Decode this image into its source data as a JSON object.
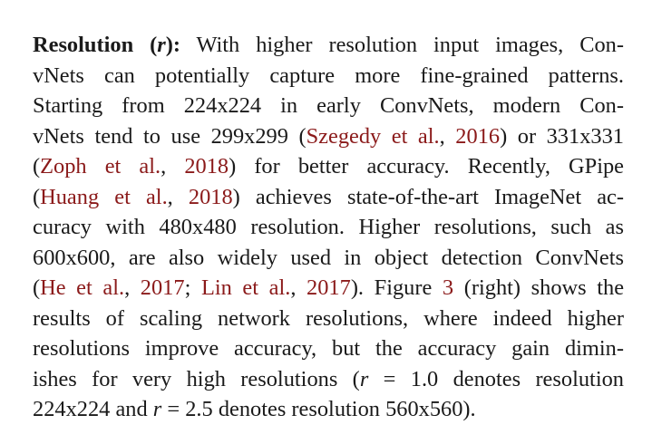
{
  "paragraph": {
    "heading": "Resolution (",
    "heading_var": "r",
    "heading_end": "):",
    "lines": [
      {
        "parts": [
          " With higher resolution input images, Con-"
        ]
      },
      {
        "parts": [
          "vNets can potentially capture more fine-grained patterns."
        ]
      },
      {
        "parts": [
          "Starting from 224x224 in early ConvNets, modern Con-"
        ]
      },
      {
        "parts": [
          "vNets tend to use 299x299 (",
          "Szegedy et al.",
          ", ",
          "2016",
          ") or 331x331"
        ]
      },
      {
        "parts": [
          "(",
          "Zoph et al.",
          ", ",
          "2018",
          ") for better accuracy.  Recently, GPipe"
        ]
      },
      {
        "parts": [
          "(",
          "Huang et al.",
          ", ",
          "2018",
          ") achieves state-of-the-art ImageNet ac-"
        ]
      },
      {
        "parts": [
          "curacy with 480x480 resolution. Higher resolutions, such as"
        ]
      },
      {
        "parts": [
          "600x600, are also widely used in object detection ConvNets"
        ]
      },
      {
        "parts": [
          "(",
          "He et al.",
          ", ",
          "2017",
          "; ",
          "Lin et al.",
          ", ",
          "2017",
          "). Figure ",
          "3",
          " (right) shows the"
        ]
      },
      {
        "parts": [
          "results of scaling network resolutions, where indeed higher"
        ]
      },
      {
        "parts": [
          "resolutions improve accuracy, but the accuracy gain dimin-"
        ]
      },
      {
        "parts": [
          "ishes for very high resolutions (",
          "r",
          " = 1.0 denotes resolution"
        ]
      },
      {
        "parts": [
          "224x224 and ",
          "r",
          " = 2.5 denotes resolution 560x560)."
        ]
      }
    ]
  },
  "colors": {
    "text": "#1a1a1a",
    "citation": "#8b1a1a"
  }
}
